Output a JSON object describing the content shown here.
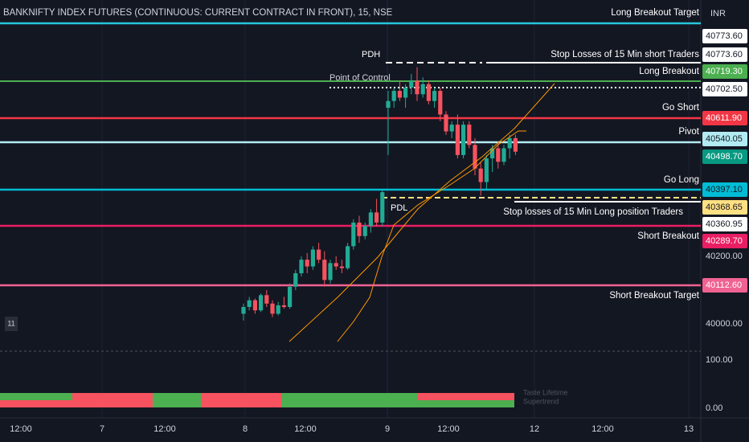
{
  "header": {
    "title": "BANKNIFTY INDEX FUTURES (CONTINUOUS: CURRENT CONTRACT IN FRONT), 15, NSE",
    "currency": "INR",
    "badge": "11"
  },
  "annotations": {
    "long_breakout_target": "Long Breakout Target",
    "stop_short": "Stop Losses of 15 Min short Traders",
    "long_breakout": "Long Breakout",
    "go_short": "Go Short",
    "pivot": "Pivot",
    "go_long": "Go Long",
    "stop_long": "Stop losses of 15 Min Long position Traders",
    "short_breakout": "Short Breakout",
    "short_breakout_target": "Short Breakout Target",
    "pdh": "PDH",
    "poc": "Point of Control",
    "pdl": "PDL",
    "indicator_1": "Taste Lifetime",
    "indicator_2": "Supertrend"
  },
  "price_labels": [
    {
      "text": "40773.60",
      "bg": "#ffffff",
      "fg": "#131722"
    },
    {
      "text": "40773.60",
      "bg": "#ffffff",
      "fg": "#131722"
    },
    {
      "text": "40719.30",
      "bg": "#4caf50",
      "fg": "#ffffff"
    },
    {
      "text": "40702.50",
      "bg": "#ffffff",
      "fg": "#131722"
    },
    {
      "text": "40611.90",
      "bg": "#f23645",
      "fg": "#ffffff"
    },
    {
      "text": "40540.05",
      "bg": "#b2ebf2",
      "fg": "#131722"
    },
    {
      "text": "40498.70",
      "bg": "#089981",
      "fg": "#ffffff"
    },
    {
      "text": "40397.10",
      "bg": "#00bcd4",
      "fg": "#131722"
    },
    {
      "text": "40368.65",
      "bg": "#ffe082",
      "fg": "#131722"
    },
    {
      "text": "40360.95",
      "bg": "#ffffff",
      "fg": "#131722"
    },
    {
      "text": "40289.70",
      "bg": "#e91e63",
      "fg": "#ffffff"
    },
    {
      "text": "40200.00",
      "bg": null,
      "fg": "#d1d4dc"
    },
    {
      "text": "40112.60",
      "bg": "#f06292",
      "fg": "#ffffff"
    },
    {
      "text": "40000.00",
      "bg": null,
      "fg": "#d1d4dc"
    },
    {
      "text": "100.00",
      "bg": null,
      "fg": "#d1d4dc"
    },
    {
      "text": "0.00",
      "bg": null,
      "fg": "#d1d4dc"
    }
  ],
  "time_labels": [
    "12:00",
    "7",
    "12:00",
    "8",
    "12:00",
    "9",
    "12:00",
    "12",
    "12:00",
    "13"
  ],
  "candles": [
    [
      40030,
      40060,
      40010,
      40050
    ],
    [
      40050,
      40080,
      40040,
      40070
    ],
    [
      40070,
      40075,
      40030,
      40040
    ],
    [
      40040,
      40090,
      40035,
      40085
    ],
    [
      40085,
      40100,
      40050,
      40060
    ],
    [
      40060,
      40070,
      40020,
      40030
    ],
    [
      40030,
      40065,
      40025,
      40055
    ],
    [
      40055,
      40080,
      40045,
      40050
    ],
    [
      40050,
      40120,
      40045,
      40110
    ],
    [
      40110,
      40160,
      40100,
      40150
    ],
    [
      40150,
      40200,
      40140,
      40190
    ],
    [
      40190,
      40210,
      40150,
      40170
    ],
    [
      40170,
      40230,
      40160,
      40220
    ],
    [
      40220,
      40240,
      40180,
      40190
    ],
    [
      40190,
      40215,
      40110,
      40130
    ],
    [
      40130,
      40190,
      40120,
      40180
    ],
    [
      40180,
      40200,
      40160,
      40170
    ],
    [
      40170,
      40190,
      40150,
      40165
    ],
    [
      40165,
      40240,
      40160,
      40230
    ],
    [
      40230,
      40310,
      40220,
      40300
    ],
    [
      40300,
      40320,
      40240,
      40260
    ],
    [
      40260,
      40300,
      40250,
      40290
    ],
    [
      40290,
      40340,
      40270,
      40330
    ],
    [
      40330,
      40370,
      40290,
      40300
    ],
    [
      40300,
      40395,
      40290,
      40390
    ],
    [
      40640,
      40690,
      40500,
      40660
    ],
    [
      40660,
      40700,
      40640,
      40690
    ],
    [
      40690,
      40720,
      40660,
      40670
    ],
    [
      40670,
      40710,
      40640,
      40700
    ],
    [
      40700,
      40740,
      40680,
      40720
    ],
    [
      40720,
      40760,
      40660,
      40680
    ],
    [
      40680,
      40730,
      40670,
      40710
    ],
    [
      40710,
      40720,
      40650,
      40660
    ],
    [
      40660,
      40700,
      40640,
      40690
    ],
    [
      40690,
      40700,
      40600,
      40620
    ],
    [
      40620,
      40630,
      40560,
      40570
    ],
    [
      40570,
      40600,
      40550,
      40590
    ],
    [
      40590,
      40620,
      40490,
      40500
    ],
    [
      40500,
      40600,
      40490,
      40590
    ],
    [
      40590,
      40600,
      40520,
      40530
    ],
    [
      40530,
      40550,
      40440,
      40460
    ],
    [
      40460,
      40480,
      40380,
      40420
    ],
    [
      40420,
      40500,
      40400,
      40490
    ],
    [
      40490,
      40530,
      40450,
      40520
    ],
    [
      40520,
      40540,
      40460,
      40480
    ],
    [
      40480,
      40530,
      40470,
      40520
    ],
    [
      40520,
      40560,
      40490,
      40550
    ],
    [
      40550,
      40560,
      40500,
      40510
    ]
  ],
  "colors": {
    "up": "#22ab94",
    "down": "#f7525f"
  }
}
